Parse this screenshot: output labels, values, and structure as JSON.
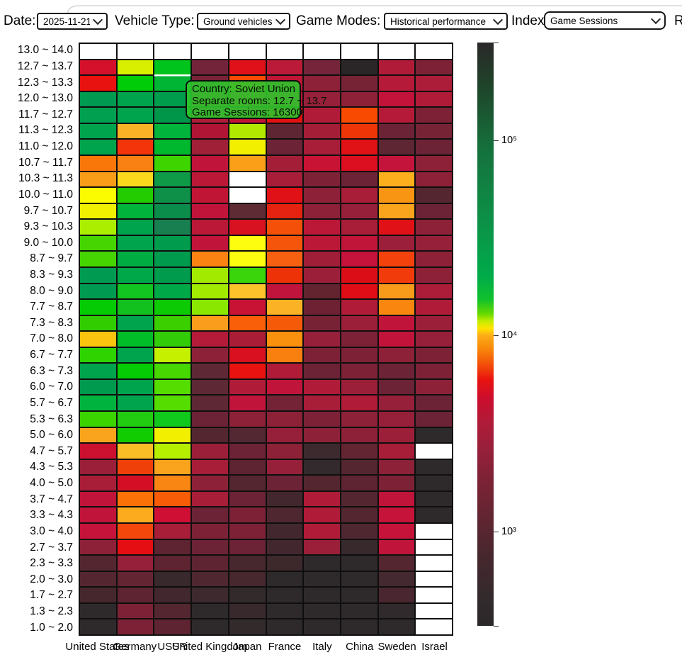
{
  "toolbar": {
    "date_label": "Date:",
    "date_value": "2025-11-21",
    "vehicle_type_label": "Vehicle Type:",
    "vehicle_type_value": "Ground vehicles",
    "game_modes_label": "Game Modes:",
    "game_modes_value": "Historical performance",
    "index_label": "Index:",
    "index_value": "Game Sessions",
    "clipped_right_text": "R"
  },
  "tooltip": {
    "line1": "Country: Soviet Union",
    "line2": "Separate rooms: 12.7 ~ 13.7",
    "line3": "Game Sessions: 16300",
    "bg_color": "#2cc62c",
    "border_color": "#0c0c0c"
  },
  "chart_data": {
    "type": "heatmap",
    "title": "",
    "x_axis_name": "Country",
    "y_axis_name": "Separate rooms",
    "value_name": "Game Sessions",
    "x_categories": [
      "United States",
      "Germany",
      "USSR",
      "United Kingdom",
      "Japan",
      "France",
      "Italy",
      "China",
      "Sweden",
      "Israel"
    ],
    "y_categories": [
      "13.0 ~ 14.0",
      "12.7 ~ 13.7",
      "12.3 ~ 13.3",
      "12.0 ~ 13.0",
      "11.7 ~ 12.7",
      "11.3 ~ 12.3",
      "11.0 ~ 12.0",
      "10.7 ~ 11.7",
      "10.3 ~ 11.3",
      "10.0 ~ 11.0",
      "9.7 ~ 10.7",
      "9.3 ~ 10.3",
      "9.0 ~ 10.0",
      "8.7 ~ 9.7",
      "8.3 ~ 9.3",
      "8.0 ~ 9.0",
      "7.7 ~ 8.7",
      "7.3 ~ 8.3",
      "7.0 ~ 8.0",
      "6.7 ~ 7.7",
      "6.3 ~ 7.3",
      "6.0 ~ 7.0",
      "5.7 ~ 6.7",
      "5.3 ~ 6.3",
      "5.0 ~ 6.0",
      "4.7 ~ 5.7",
      "4.3 ~ 5.3",
      "4.0 ~ 5.0",
      "3.7 ~ 4.7",
      "3.3 ~ 4.3",
      "3.0 ~ 4.0",
      "2.7 ~ 3.7",
      "2.3 ~ 3.3",
      "2.0 ~ 3.0",
      "1.7 ~ 2.7",
      "1.3 ~ 2.3",
      "1.0 ~ 2.0"
    ],
    "missing_color": "#ffffff",
    "hovered_cell": {
      "row_index": 1,
      "col_index": 2,
      "row_label": "12.7 ~ 13.7",
      "column": "USSR",
      "value": 16300,
      "highlight_color": "#ffffff"
    },
    "cells": [
      [
        "#ffffff",
        "#ffffff",
        "#ffffff",
        "#ffffff",
        "#ffffff",
        "#ffffff",
        "#ffffff",
        "#ffffff",
        "#ffffff",
        "#ffffff"
      ],
      [
        "#d5102a",
        "#d8f000",
        "#00c41c",
        "#73243a",
        "#e01118",
        "#bb1a38",
        "#75243a",
        "#2a2527",
        "#b01b38",
        "#7d2236"
      ],
      [
        "#e81310",
        "#00cc08",
        "#00b434",
        "#7a2236",
        "#f84a00",
        "#c01535",
        "#8d2138",
        "#772336",
        "#b51a38",
        "#ab1d38"
      ],
      [
        "#009a50",
        "#00a44c",
        "#009d4d",
        "#b01b38",
        "#d8122a",
        "#c51335",
        "#96203a",
        "#8d2138",
        "#c4133a",
        "#b01b38"
      ],
      [
        "#00a050",
        "#00a44c",
        "#00964a",
        "#b01b38",
        "#c01535",
        "#e31111",
        "#b01b38",
        "#f94a02",
        "#b51b38",
        "#7d2236"
      ],
      [
        "#00a44c",
        "#fbb125",
        "#00b43c",
        "#b01535",
        "#b2e900",
        "#5e2633",
        "#a41e38",
        "#ee3508",
        "#6d2336",
        "#772336"
      ],
      [
        "#00a44c",
        "#f3330a",
        "#00b82e",
        "#a02037",
        "#f2f000",
        "#6d2336",
        "#a81d38",
        "#e01216",
        "#5e2532",
        "#6d2336"
      ],
      [
        "#f97708",
        "#f98012",
        "#3ed400",
        "#c0143a",
        "#fb9f18",
        "#a51e38",
        "#c81335",
        "#db0f20",
        "#c4143c",
        "#8d2138"
      ],
      [
        "#f99d18",
        "#fbd81c",
        "#0f9a48",
        "#bb1838",
        "#ffffff",
        "#a81d38",
        "#7d2236",
        "#6d2336",
        "#fbaf1c",
        "#8d2138"
      ],
      [
        "#fcfc00",
        "#22cc00",
        "#0f9048",
        "#c01535",
        "#ffffff",
        "#e01117",
        "#8d2138",
        "#a81d38",
        "#f89513",
        "#542630"
      ],
      [
        "#f0f000",
        "#00b43c",
        "#0c8c4a",
        "#c0143a",
        "#5e2a34",
        "#e52310",
        "#8d2138",
        "#96203a",
        "#f9a41c",
        "#6d2336"
      ],
      [
        "#abee00",
        "#00a44c",
        "#188050",
        "#bb1838",
        "#d81220",
        "#f4500a",
        "#bb1838",
        "#a81d38",
        "#e01117",
        "#8d2138"
      ],
      [
        "#46d500",
        "#00a44c",
        "#009b4d",
        "#c0143a",
        "#fdfd10",
        "#f4550a",
        "#bb1838",
        "#c01539",
        "#9b1f3a",
        "#96203a"
      ],
      [
        "#46d500",
        "#00ad43",
        "#009b4d",
        "#fb8312",
        "#fdfd10",
        "#f86011",
        "#a01e38",
        "#c5133c",
        "#f4420c",
        "#8d2138"
      ],
      [
        "#009b50",
        "#00a84a",
        "#009b4d",
        "#a2ea00",
        "#3ad50a",
        "#ee3208",
        "#9b1f38",
        "#db0e17",
        "#f23b0a",
        "#8d2138"
      ],
      [
        "#009b50",
        "#12c520",
        "#00a848",
        "#a2ea00",
        "#fcc42a",
        "#c0143c",
        "#63232f",
        "#e00d16",
        "#f99b1a",
        "#ab1d38"
      ],
      [
        "#04cb04",
        "#12c11e",
        "#0ccb04",
        "#8ae800",
        "#c81335",
        "#fbb224",
        "#6d2133",
        "#b01b38",
        "#f8860f",
        "#b01b38"
      ],
      [
        "#32cd00",
        "#00a44c",
        "#3ccf00",
        "#fa9d1c",
        "#f95e08",
        "#f45a08",
        "#772335",
        "#9b1f38",
        "#c0143a",
        "#9b1f38"
      ],
      [
        "#fbc40f",
        "#00bd28",
        "#32cd08",
        "#b41b38",
        "#aa1d36",
        "#f9910e",
        "#96203a",
        "#7d2236",
        "#c2143a",
        "#96203a"
      ],
      [
        "#2ed300",
        "#00a44c",
        "#c5f000",
        "#8d2138",
        "#d81020",
        "#f97f0e",
        "#7d2236",
        "#7d2236",
        "#8d2138",
        "#7d2236"
      ],
      [
        "#00a44c",
        "#04cb04",
        "#46d800",
        "#5e2834",
        "#e81310",
        "#b01b38",
        "#6d2336",
        "#7d2236",
        "#6d2336",
        "#7d2236"
      ],
      [
        "#009a4e",
        "#00a44c",
        "#55dd00",
        "#5e2834",
        "#b01b38",
        "#c0143a",
        "#b01b38",
        "#9b1f38",
        "#6d2336",
        "#8d2138"
      ],
      [
        "#00b33e",
        "#00a44c",
        "#55dd00",
        "#5e2834",
        "#c0143a",
        "#732335",
        "#a81d38",
        "#b01b38",
        "#96203a",
        "#6d2336"
      ],
      [
        "#3bd400",
        "#22cc11",
        "#11c81c",
        "#6d2336",
        "#8d2138",
        "#8d2138",
        "#7d2236",
        "#8d2138",
        "#96203a",
        "#6d2336"
      ],
      [
        "#f9a41c",
        "#11cc00",
        "#f2f000",
        "#542630",
        "#542832",
        "#96203a",
        "#8d2138",
        "#8d2138",
        "#9b1f38",
        "#2e2a2c"
      ],
      [
        "#cc1030",
        "#fbbd26",
        "#b7ef00",
        "#9b1f38",
        "#6d2336",
        "#8d2138",
        "#3c2a2e",
        "#632531",
        "#a81d38",
        "#ffffff"
      ],
      [
        "#9b1f38",
        "#f0400a",
        "#f9a41c",
        "#a81d38",
        "#5e2431",
        "#96203a",
        "#332a2d",
        "#542630",
        "#8d2138",
        "#2e2a2c"
      ],
      [
        "#a81d38",
        "#d40f25",
        "#f98612",
        "#8d2138",
        "#542630",
        "#6d2336",
        "#542630",
        "#5e2431",
        "#7d2236",
        "#2e2a2c"
      ],
      [
        "#c0143a",
        "#f97107",
        "#f85c06",
        "#a81d38",
        "#6d2336",
        "#42282e",
        "#b01b38",
        "#542630",
        "#c0143a",
        "#2e2a2c"
      ],
      [
        "#c0143a",
        "#fbab1d",
        "#d00f35",
        "#6d2336",
        "#7d2236",
        "#4f2730",
        "#b01b38",
        "#542630",
        "#c5133a",
        "#2e2a2c"
      ],
      [
        "#c5133a",
        "#f4470b",
        "#a81d38",
        "#7d2236",
        "#7d2236",
        "#42282e",
        "#b01b38",
        "#4f2730",
        "#c5133a",
        "#ffffff"
      ],
      [
        "#8d2138",
        "#e50e12",
        "#5e2431",
        "#6d2336",
        "#6d2336",
        "#42282e",
        "#9b1f38",
        "#38292c",
        "#c0143a",
        "#ffffff"
      ],
      [
        "#542630",
        "#96203a",
        "#5e2431",
        "#5e2431",
        "#47282e",
        "#3d282c",
        "#2e2a2c",
        "#2e2a2c",
        "#542630",
        "#ffffff"
      ],
      [
        "#542630",
        "#632531",
        "#38292d",
        "#4f2730",
        "#47282e",
        "#2e2a2c",
        "#2e2a2c",
        "#2e2a2c",
        "#442930",
        "#ffffff"
      ],
      [
        "#47272e",
        "#5e2431",
        "#42282e",
        "#3d292e",
        "#332a2c",
        "#2e2a2c",
        "#2e2a2c",
        "#2e2a2c",
        "#4a2730",
        "#ffffff"
      ],
      [
        "#2e2a2c",
        "#7d2236",
        "#542630",
        "#2e2a2c",
        "#38292c",
        "#2e2a2c",
        "#2e2a2c",
        "#2e2a2c",
        "#302a2c",
        "#ffffff"
      ],
      [
        "#2e2a2c",
        "#7d2236",
        "#5e2431",
        "#2e2a2c",
        "#332a2c",
        "#2e2a2c",
        "#2e2a2c",
        "#2e2a2c",
        "#2e2a2c",
        "#ffffff"
      ]
    ],
    "colorbar": {
      "scale": "log",
      "legend_position": "right",
      "ticks": [
        {
          "pos": 0.168,
          "label": "10⁵"
        },
        {
          "pos": 0.502,
          "label": "10⁴"
        },
        {
          "pos": 0.838,
          "label": "10³"
        }
      ],
      "end_tick_positions": [
        0,
        1
      ],
      "gradient": [
        {
          "pos": 0.0,
          "color": "#2b2829"
        },
        {
          "pos": 0.07,
          "color": "#1f4229"
        },
        {
          "pos": 0.18,
          "color": "#15703c"
        },
        {
          "pos": 0.3,
          "color": "#0d8f47"
        },
        {
          "pos": 0.4,
          "color": "#00ab4a"
        },
        {
          "pos": 0.44,
          "color": "#0fc12c"
        },
        {
          "pos": 0.465,
          "color": "#66d900"
        },
        {
          "pos": 0.478,
          "color": "#c6ec00"
        },
        {
          "pos": 0.49,
          "color": "#ffe300"
        },
        {
          "pos": 0.502,
          "color": "#fcae18"
        },
        {
          "pos": 0.525,
          "color": "#f9880a"
        },
        {
          "pos": 0.553,
          "color": "#f24d08"
        },
        {
          "pos": 0.578,
          "color": "#e81310"
        },
        {
          "pos": 0.61,
          "color": "#cc0d2e"
        },
        {
          "pos": 0.65,
          "color": "#b01b38"
        },
        {
          "pos": 0.7,
          "color": "#96203a"
        },
        {
          "pos": 0.75,
          "color": "#7d2236"
        },
        {
          "pos": 0.81,
          "color": "#632531"
        },
        {
          "pos": 0.88,
          "color": "#47272e"
        },
        {
          "pos": 0.95,
          "color": "#332a2c"
        },
        {
          "pos": 1.0,
          "color": "#2b2829"
        }
      ]
    }
  }
}
